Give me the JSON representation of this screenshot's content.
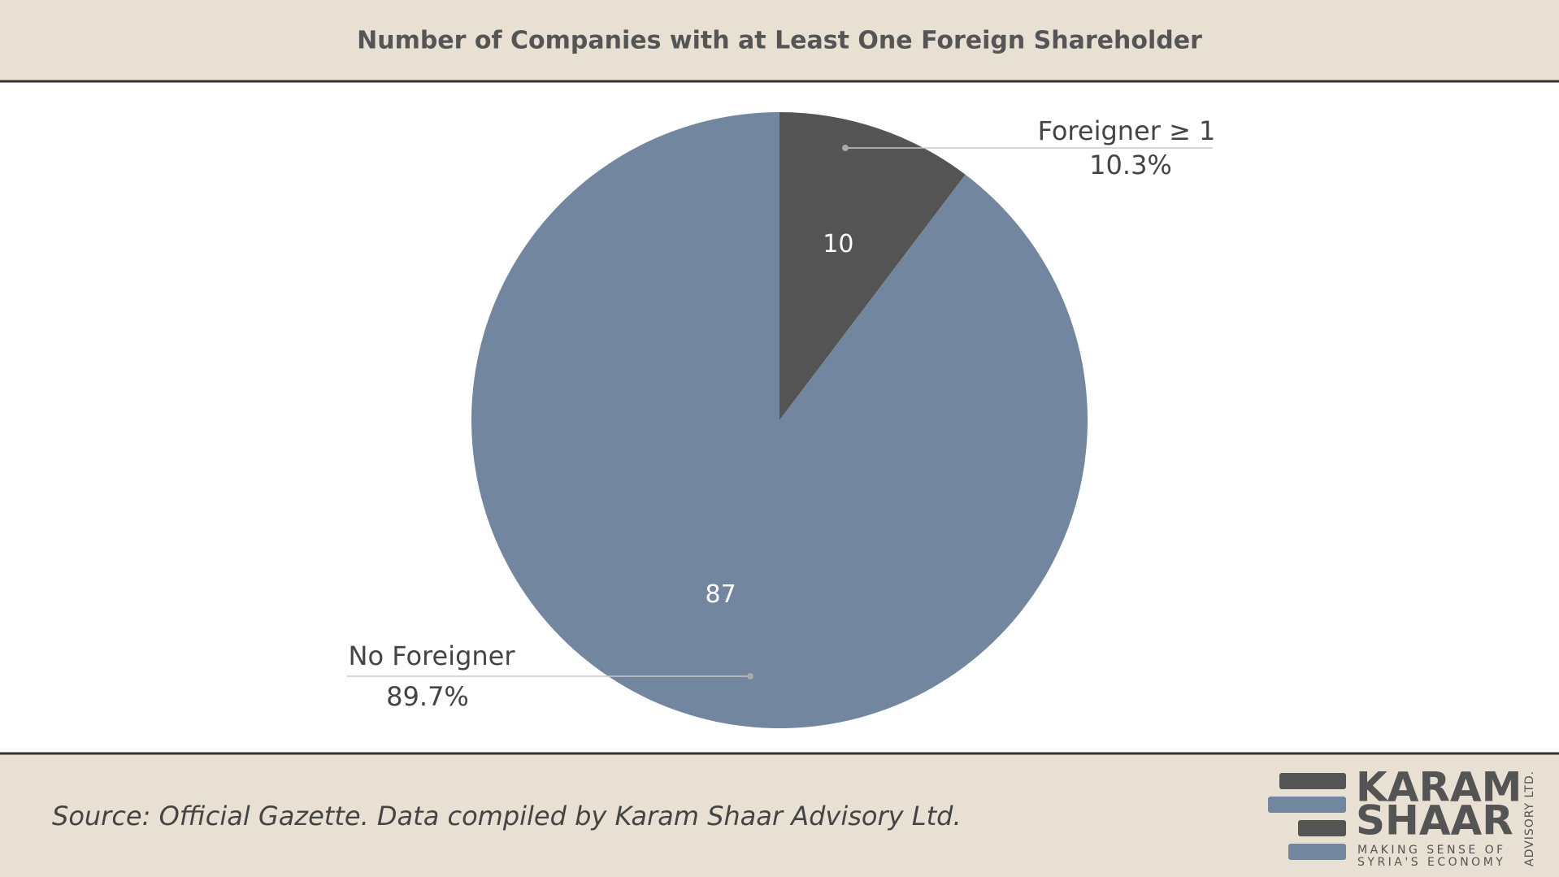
{
  "chart_data": {
    "type": "pie",
    "title": "Number of Companies with at Least One Foreign Shareholder",
    "categories": [
      "Foreigner ≥ 1",
      "No Foreigner"
    ],
    "values": [
      10,
      87
    ],
    "percent_labels": [
      "10.3%",
      "89.7%"
    ],
    "colors": [
      "#545454",
      "#7386a0"
    ],
    "source": "Source: Official Gazette. Data compiled by Karam Shaar Advisory Ltd."
  },
  "logo": {
    "line1": "KARAM",
    "line2": "SHAAR",
    "tagline1": "MAKING SENSE OF",
    "tagline2": "SYRIA'S ECONOMY",
    "side": "ADVISORY LTD."
  }
}
